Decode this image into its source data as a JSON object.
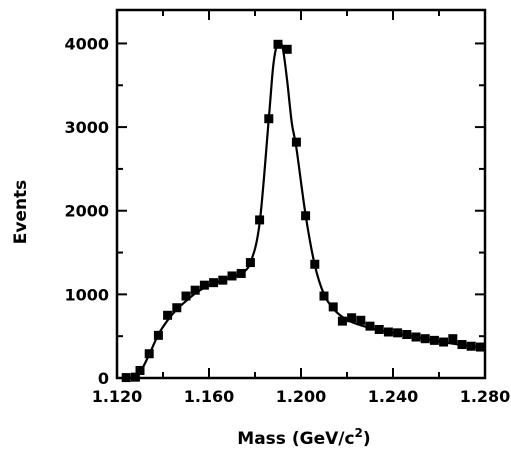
{
  "chart_data": {
    "type": "scatter",
    "title": "",
    "xlabel": "Mass (GeV/c",
    "xlabel_sup": "2",
    "xlabel_close": ")",
    "ylabel": "Events",
    "xlim": [
      1.12,
      1.28
    ],
    "ylim": [
      0,
      4400
    ],
    "x_ticks": [
      1.12,
      1.16,
      1.2,
      1.24,
      1.28
    ],
    "x_tick_labels": [
      "1.120",
      "1.160",
      "1.200",
      "1.240",
      "1.280"
    ],
    "y_ticks": [
      0,
      1000,
      2000,
      3000,
      4000
    ],
    "y_tick_labels": [
      "0",
      "1000",
      "2000",
      "3000",
      "4000"
    ],
    "grid": false,
    "legend": "none",
    "marker": "filled-square",
    "color": "#000000",
    "series": [
      {
        "x": [
          1.124,
          1.128,
          1.13,
          1.134,
          1.138,
          1.142,
          1.146,
          1.15,
          1.154,
          1.158,
          1.162,
          1.166,
          1.17,
          1.174,
          1.178,
          1.182,
          1.186,
          1.19,
          1.194,
          1.198,
          1.202,
          1.206,
          1.21,
          1.214,
          1.218,
          1.222,
          1.226,
          1.23,
          1.234,
          1.238,
          1.242,
          1.246,
          1.25,
          1.254,
          1.258,
          1.262,
          1.266,
          1.27,
          1.274,
          1.278
        ],
        "y": [
          5,
          10,
          90,
          290,
          510,
          750,
          840,
          980,
          1050,
          1110,
          1140,
          1170,
          1220,
          1250,
          1380,
          1890,
          3100,
          3990,
          3930,
          2820,
          1940,
          1360,
          980,
          850,
          680,
          720,
          690,
          620,
          580,
          550,
          540,
          520,
          490,
          470,
          450,
          430,
          470,
          400,
          380,
          370
        ]
      }
    ],
    "fit_curve": {
      "x": [
        1.124,
        1.128,
        1.13,
        1.134,
        1.138,
        1.142,
        1.146,
        1.15,
        1.154,
        1.158,
        1.162,
        1.166,
        1.17,
        1.174,
        1.178,
        1.182,
        1.186,
        1.188,
        1.19,
        1.192,
        1.194,
        1.196,
        1.198,
        1.202,
        1.206,
        1.21,
        1.214,
        1.218,
        1.222,
        1.226,
        1.23,
        1.234,
        1.238,
        1.242,
        1.246,
        1.25,
        1.254,
        1.258,
        1.262,
        1.266,
        1.27,
        1.274,
        1.279
      ],
      "y": [
        0,
        5,
        60,
        280,
        520,
        690,
        820,
        920,
        1010,
        1080,
        1130,
        1170,
        1210,
        1250,
        1380,
        1850,
        3100,
        3750,
        4010,
        3950,
        3550,
        3050,
        2750,
        1950,
        1350,
        1000,
        830,
        730,
        670,
        630,
        600,
        570,
        550,
        530,
        510,
        490,
        470,
        450,
        430,
        410,
        395,
        380,
        365
      ]
    }
  }
}
